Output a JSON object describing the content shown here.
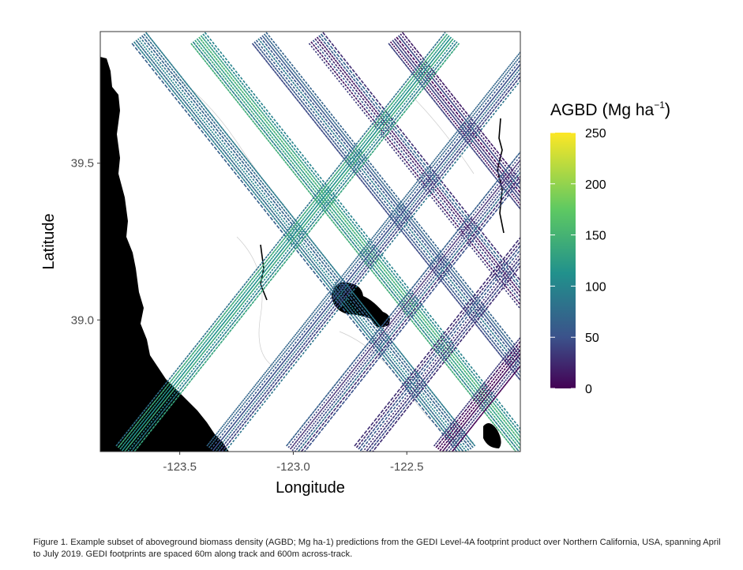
{
  "chart_data": {
    "type": "scatter",
    "xlabel": "Longitude",
    "ylabel": "Latitude",
    "xlim": [
      -123.85,
      -122.0
    ],
    "ylim": [
      38.58,
      39.92
    ],
    "x_ticks": [
      -123.5,
      -123.0,
      -122.5
    ],
    "x_tick_labels": [
      "-123.5",
      "-123.0",
      "-122.5"
    ],
    "y_ticks": [
      39.0,
      39.5
    ],
    "y_tick_labels": [
      "39.0",
      "39.5"
    ],
    "legend": {
      "title": "AGBD",
      "unit_main": "Mg ha",
      "unit_superscript": "−1",
      "min": 0,
      "max": 250,
      "ticks": [
        0,
        50,
        100,
        150,
        200,
        250
      ],
      "tick_labels": [
        "0",
        "50",
        "100",
        "150",
        "200",
        "250"
      ],
      "colormap": "viridis"
    },
    "colors": [
      "#440154",
      "#3b528b",
      "#21918c",
      "#5ec962",
      "#fde725"
    ],
    "grid": false,
    "track_groups": [
      {
        "direction": "descending-east",
        "lon_intercept_at_lat_39_9": -123.68,
        "approx_agbd": 90
      },
      {
        "direction": "descending-east",
        "lon_intercept_at_lat_39_9": -123.42,
        "approx_agbd": 120
      },
      {
        "direction": "descending-east",
        "lon_intercept_at_lat_39_9": -123.15,
        "approx_agbd": 60
      },
      {
        "direction": "descending-east",
        "lon_intercept_at_lat_39_9": -122.9,
        "approx_agbd": 40
      },
      {
        "direction": "descending-east",
        "lon_intercept_at_lat_39_9": -122.55,
        "approx_agbd": 20
      },
      {
        "direction": "ascending-east",
        "lon_intercept_at_lat_38_6": -123.35,
        "approx_agbd": 70
      },
      {
        "direction": "ascending-east",
        "lon_intercept_at_lat_38_6": -123.0,
        "approx_agbd": 50
      },
      {
        "direction": "ascending-east",
        "lon_intercept_at_lat_38_6": -122.7,
        "approx_agbd": 30
      },
      {
        "direction": "ascending-east",
        "lon_intercept_at_lat_38_6": -123.75,
        "approx_agbd": 110
      },
      {
        "direction": "ascending-east",
        "lon_intercept_at_lat_38_6": -122.35,
        "approx_agbd": 15
      }
    ]
  },
  "caption": "Figure 1. Example subset of aboveground biomass density (AGBD; Mg ha-1) predictions from the GEDI Level-4A footprint product over Northern California, USA, spanning April to July 2019. GEDI footprints are spaced 60m along track and 600m across-track."
}
